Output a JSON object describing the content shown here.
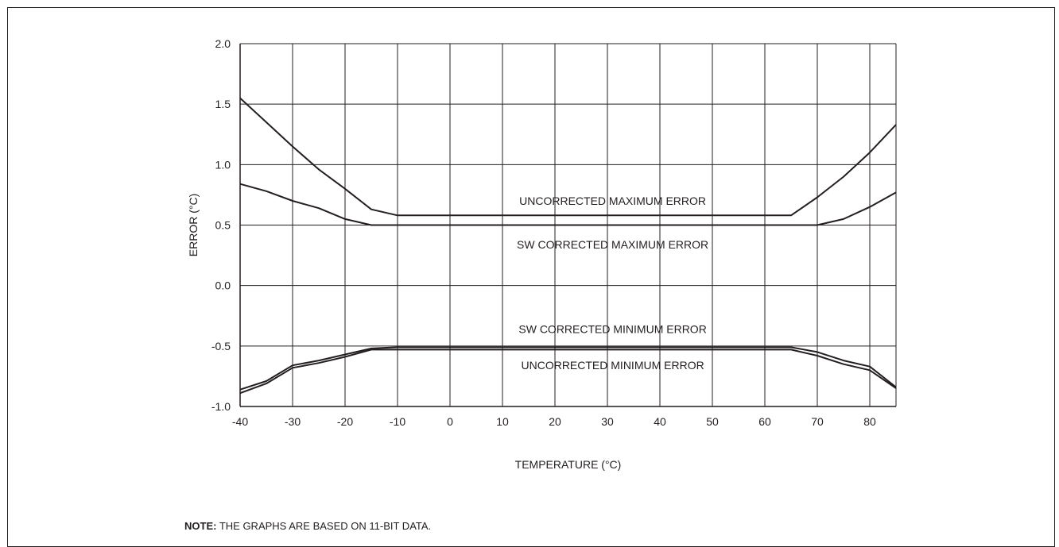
{
  "chart_data": {
    "type": "line",
    "xlabel": "TEMPERATURE (°C)",
    "ylabel": "ERROR (°C)",
    "xlim": [
      -40,
      85
    ],
    "ylim": [
      -1.0,
      2.0
    ],
    "x_ticks": [
      -40,
      -30,
      -20,
      -10,
      0,
      10,
      20,
      30,
      40,
      50,
      60,
      70,
      80
    ],
    "x_tick_labels": [
      "-40",
      "-30",
      "-20",
      "-10",
      "0",
      "10",
      "20",
      "30",
      "40",
      "50",
      "60",
      "70",
      "80"
    ],
    "y_ticks": [
      -1.0,
      -0.5,
      0.0,
      0.5,
      1.0,
      1.5,
      2.0
    ],
    "y_tick_labels": [
      "-1.0",
      "-0.5",
      "0.0",
      "0.5",
      "1.0",
      "1.5",
      "2.0"
    ],
    "grid": true,
    "legend": "none",
    "line_color": "#231f20",
    "series": [
      {
        "name": "UNCORRECTED MAXIMUM ERROR",
        "x": [
          -40,
          -35,
          -30,
          -25,
          -20,
          -15,
          -10,
          0,
          10,
          20,
          30,
          40,
          50,
          60,
          65,
          70,
          75,
          80,
          85
        ],
        "values": [
          1.55,
          1.35,
          1.15,
          0.96,
          0.8,
          0.63,
          0.58,
          0.58,
          0.58,
          0.58,
          0.58,
          0.58,
          0.58,
          0.58,
          0.58,
          0.73,
          0.9,
          1.1,
          1.33
        ]
      },
      {
        "name": "SW CORRECTED MAXIMUM ERROR",
        "x": [
          -40,
          -35,
          -30,
          -25,
          -20,
          -15,
          -10,
          0,
          10,
          20,
          30,
          40,
          50,
          60,
          65,
          70,
          75,
          80,
          85
        ],
        "values": [
          0.84,
          0.78,
          0.7,
          0.64,
          0.55,
          0.5,
          0.5,
          0.5,
          0.5,
          0.5,
          0.5,
          0.5,
          0.5,
          0.5,
          0.5,
          0.5,
          0.55,
          0.65,
          0.77
        ]
      },
      {
        "name": "SW CORRECTED MINIMUM ERROR",
        "x": [
          -40,
          -35,
          -30,
          -25,
          -20,
          -15,
          -10,
          0,
          10,
          20,
          30,
          40,
          50,
          60,
          65,
          70,
          75,
          80,
          85
        ],
        "values": [
          -0.86,
          -0.79,
          -0.66,
          -0.62,
          -0.57,
          -0.52,
          -0.51,
          -0.51,
          -0.51,
          -0.51,
          -0.51,
          -0.51,
          -0.51,
          -0.51,
          -0.51,
          -0.55,
          -0.62,
          -0.67,
          -0.84
        ]
      },
      {
        "name": "UNCORRECTED MINIMUM ERROR",
        "x": [
          -40,
          -35,
          -30,
          -25,
          -20,
          -15,
          -10,
          0,
          10,
          20,
          30,
          40,
          50,
          60,
          65,
          70,
          75,
          80,
          85
        ],
        "values": [
          -0.89,
          -0.81,
          -0.68,
          -0.64,
          -0.59,
          -0.53,
          -0.53,
          -0.53,
          -0.53,
          -0.53,
          -0.53,
          -0.53,
          -0.53,
          -0.53,
          -0.53,
          -0.58,
          -0.65,
          -0.7,
          -0.85
        ]
      }
    ],
    "annotations": [
      {
        "text": "UNCORRECTED MAXIMUM ERROR",
        "x": 31,
        "y": 0.7
      },
      {
        "text": "SW CORRECTED MAXIMUM ERROR",
        "x": 31,
        "y": 0.34
      },
      {
        "text": "SW CORRECTED MINIMUM ERROR",
        "x": 31,
        "y": -0.36
      },
      {
        "text": "UNCORRECTED MINIMUM ERROR",
        "x": 31,
        "y": -0.66
      }
    ]
  },
  "note": {
    "label": "NOTE:",
    "text": " THE GRAPHS ARE BASED ON 11-BIT DATA."
  }
}
